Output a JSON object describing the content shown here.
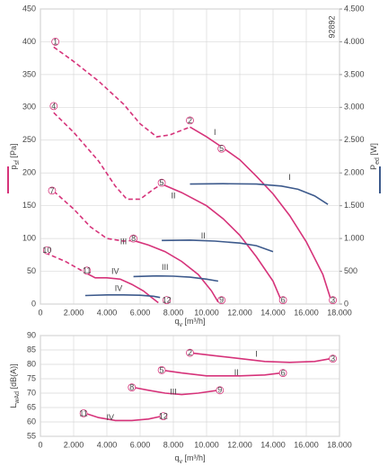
{
  "chart_data": [
    {
      "type": "line",
      "code": "92892",
      "x_label": {
        "main": "q",
        "sub": "v",
        "unit": " [m³/h]"
      },
      "y_label": {
        "main": "p",
        "sub": "sf",
        "unit": " [Pa]"
      },
      "y2_label": {
        "main": "P",
        "sub": "ed",
        "unit": " [W]"
      },
      "xlim": [
        0,
        18000
      ],
      "xticks": [
        0,
        {
          "value": 2000,
          "label": "2.000"
        },
        {
          "value": 4000,
          "label": "4.000"
        },
        {
          "value": 6000,
          "label": "6.000"
        },
        {
          "value": 8000,
          "label": "8.000"
        },
        {
          "value": 10000,
          "label": "10.000"
        },
        {
          "value": 12000,
          "label": "12.000"
        },
        {
          "value": 14000,
          "label": "14.000"
        },
        {
          "value": 16000,
          "label": "16.000"
        },
        {
          "value": 18000,
          "label": "18.000"
        }
      ],
      "ylim": [
        0,
        450
      ],
      "yticks": [
        0,
        50,
        100,
        150,
        200,
        250,
        300,
        350,
        400,
        450
      ],
      "y2lim": [
        0,
        4500
      ],
      "y2ticks": [
        0,
        500,
        {
          "value": 1000,
          "label": "1.000"
        },
        {
          "value": 1500,
          "label": "1.500"
        },
        {
          "value": 2000,
          "label": "2.000"
        },
        {
          "value": 2500,
          "label": "2.500"
        },
        {
          "value": 3000,
          "label": "3.000"
        },
        {
          "value": 3500,
          "label": "3.500"
        },
        {
          "value": 4000,
          "label": "4.000"
        },
        {
          "value": 4500,
          "label": "4.500"
        }
      ],
      "grid": true,
      "series": [
        {
          "color": "#d6337a",
          "dash": true,
          "x": [
            800,
            2000,
            3500,
            5000,
            6000,
            7000,
            7800,
            9000
          ],
          "values": [
            392,
            370,
            340,
            305,
            275,
            255,
            258,
            270
          ]
        },
        {
          "color": "#d6337a",
          "x": [
            9000,
            10000,
            11000,
            12000,
            13000,
            14000,
            15000,
            16000,
            17000,
            17500
          ],
          "values": [
            270,
            255,
            238,
            220,
            195,
            168,
            135,
            95,
            45,
            5
          ]
        },
        {
          "color": "#d6337a",
          "dash": true,
          "x": [
            800,
            2000,
            3500,
            4500,
            5200,
            6000,
            6800,
            7300
          ],
          "values": [
            292,
            262,
            218,
            180,
            160,
            160,
            175,
            183
          ]
        },
        {
          "color": "#d6337a",
          "x": [
            7300,
            8500,
            10000,
            11000,
            12000,
            13000,
            14000,
            14500
          ],
          "values": [
            183,
            170,
            150,
            130,
            105,
            72,
            35,
            5
          ]
        },
        {
          "color": "#d6337a",
          "dash": true,
          "x": [
            800,
            2000,
            3000,
            4000,
            5000,
            5600
          ],
          "values": [
            172,
            145,
            118,
            100,
            96,
            97
          ]
        },
        {
          "color": "#d6337a",
          "x": [
            5600,
            6500,
            7500,
            8500,
            9500,
            10300,
            10700
          ],
          "values": [
            97,
            90,
            80,
            65,
            45,
            20,
            3
          ]
        },
        {
          "color": "#d6337a",
          "dash": true,
          "x": [
            300,
            1500,
            2700
          ],
          "values": [
            78,
            65,
            48
          ]
        },
        {
          "color": "#d6337a",
          "x": [
            2700,
            3300,
            4000,
            4800,
            5500,
            6200,
            6800,
            7100
          ],
          "values": [
            48,
            40,
            40,
            38,
            30,
            20,
            8,
            2
          ]
        },
        {
          "color": "#3d5a8c",
          "axis": "y2",
          "x": [
            9000,
            11000,
            13000,
            14500,
            15500,
            16500,
            17300
          ],
          "values": [
            1830,
            1835,
            1830,
            1800,
            1750,
            1650,
            1520
          ]
        },
        {
          "color": "#3d5a8c",
          "axis": "y2",
          "x": [
            7300,
            9000,
            10500,
            12000,
            13000,
            14000
          ],
          "values": [
            970,
            975,
            960,
            930,
            890,
            800
          ]
        },
        {
          "color": "#3d5a8c",
          "axis": "y2",
          "x": [
            5600,
            7000,
            8000,
            9000,
            10000,
            10700
          ],
          "values": [
            420,
            430,
            425,
            410,
            380,
            350
          ]
        },
        {
          "color": "#3d5a8c",
          "axis": "y2",
          "x": [
            2700,
            4000,
            5000,
            6000,
            6800,
            7200
          ],
          "values": [
            130,
            140,
            140,
            135,
            120,
            100
          ]
        }
      ],
      "annotations": [
        {
          "text": "1",
          "circled": true,
          "x": 900,
          "y": 400
        },
        {
          "text": "2",
          "circled": true,
          "x": 9000,
          "y": 280
        },
        {
          "text": "3",
          "circled": true,
          "x": 17600,
          "y": 6
        },
        {
          "text": "5",
          "circled": true,
          "x": 10900,
          "y": 237
        },
        {
          "text": "4",
          "circled": true,
          "x": 800,
          "y": 302
        },
        {
          "text": "5",
          "circled": true,
          "x": 7300,
          "y": 185
        },
        {
          "text": "6",
          "circled": true,
          "x": 14600,
          "y": 6
        },
        {
          "text": "7",
          "circled": true,
          "x": 700,
          "y": 173
        },
        {
          "text": "8",
          "circled": true,
          "x": 5600,
          "y": 100
        },
        {
          "text": "9",
          "circled": true,
          "x": 10900,
          "y": 6
        },
        {
          "text": "10",
          "circled": true,
          "x": 400,
          "y": 82
        },
        {
          "text": "11",
          "circled": true,
          "x": 2800,
          "y": 51
        },
        {
          "text": "12",
          "circled": true,
          "x": 7600,
          "y": 6
        },
        {
          "text": "I",
          "x": 10500,
          "y": 262
        },
        {
          "text": "II",
          "x": 8000,
          "y": 165
        },
        {
          "text": "III",
          "x": 5000,
          "y": 95
        },
        {
          "text": "IV",
          "x": 4500,
          "y": 50
        },
        {
          "text": "I",
          "axis": "y2",
          "x": 15000,
          "y": 1930
        },
        {
          "text": "II",
          "axis": "y2",
          "x": 9800,
          "y": 1040
        },
        {
          "text": "III",
          "axis": "y2",
          "x": 7500,
          "y": 560
        },
        {
          "text": "IV",
          "axis": "y2",
          "x": 4700,
          "y": 240
        }
      ]
    },
    {
      "type": "line",
      "x_label": {
        "main": "q",
        "sub": "v",
        "unit": " [m³/h]"
      },
      "y_label": {
        "main": "L",
        "sub": "wAd",
        "unit": " [dB(A)]"
      },
      "xlim": [
        0,
        18000
      ],
      "xticks": [
        0,
        {
          "value": 2000,
          "label": "2.000"
        },
        {
          "value": 4000,
          "label": "4.000"
        },
        {
          "value": 6000,
          "label": "6.000"
        },
        {
          "value": 8000,
          "label": "8.000"
        },
        {
          "value": 10000,
          "label": "10.000"
        },
        {
          "value": 12000,
          "label": "12.000"
        },
        {
          "value": 14000,
          "label": "14.000"
        },
        {
          "value": 16000,
          "label": "16.000"
        },
        {
          "value": 18000,
          "label": "18.000"
        }
      ],
      "ylim": [
        55,
        90
      ],
      "yticks": [
        55,
        60,
        65,
        70,
        75,
        80,
        85,
        90
      ],
      "grid": true,
      "series": [
        {
          "color": "#d6337a",
          "x": [
            9000,
            10500,
            12000,
            13500,
            15000,
            16500,
            17500
          ],
          "values": [
            84,
            83,
            82,
            81,
            80.7,
            81,
            82
          ]
        },
        {
          "color": "#d6337a",
          "x": [
            7300,
            8500,
            10000,
            12000,
            13500,
            14500
          ],
          "values": [
            78,
            77,
            76,
            76,
            76.3,
            77
          ]
        },
        {
          "color": "#d6337a",
          "x": [
            5600,
            6500,
            7500,
            8500,
            9500,
            10700
          ],
          "values": [
            72,
            71,
            70,
            69.5,
            70,
            71
          ]
        },
        {
          "color": "#d6337a",
          "x": [
            2700,
            3500,
            4500,
            5500,
            6500,
            7300
          ],
          "values": [
            63,
            61.5,
            60.5,
            60.5,
            61,
            62
          ]
        }
      ],
      "annotations": [
        {
          "text": "2",
          "circled": true,
          "x": 9000,
          "y": 84
        },
        {
          "text": "3",
          "circled": true,
          "x": 17600,
          "y": 82
        },
        {
          "text": "5",
          "circled": true,
          "x": 7300,
          "y": 78
        },
        {
          "text": "6",
          "circled": true,
          "x": 14600,
          "y": 77
        },
        {
          "text": "8",
          "circled": true,
          "x": 5500,
          "y": 72
        },
        {
          "text": "9",
          "circled": true,
          "x": 10800,
          "y": 71
        },
        {
          "text": "11",
          "circled": true,
          "x": 2600,
          "y": 63
        },
        {
          "text": "12",
          "circled": true,
          "x": 7400,
          "y": 62
        },
        {
          "text": "I",
          "x": 13000,
          "y": 83.5
        },
        {
          "text": "II",
          "x": 11800,
          "y": 77.2
        },
        {
          "text": "III",
          "x": 8000,
          "y": 70.4
        },
        {
          "text": "IV",
          "x": 4200,
          "y": 61.6
        }
      ]
    }
  ]
}
